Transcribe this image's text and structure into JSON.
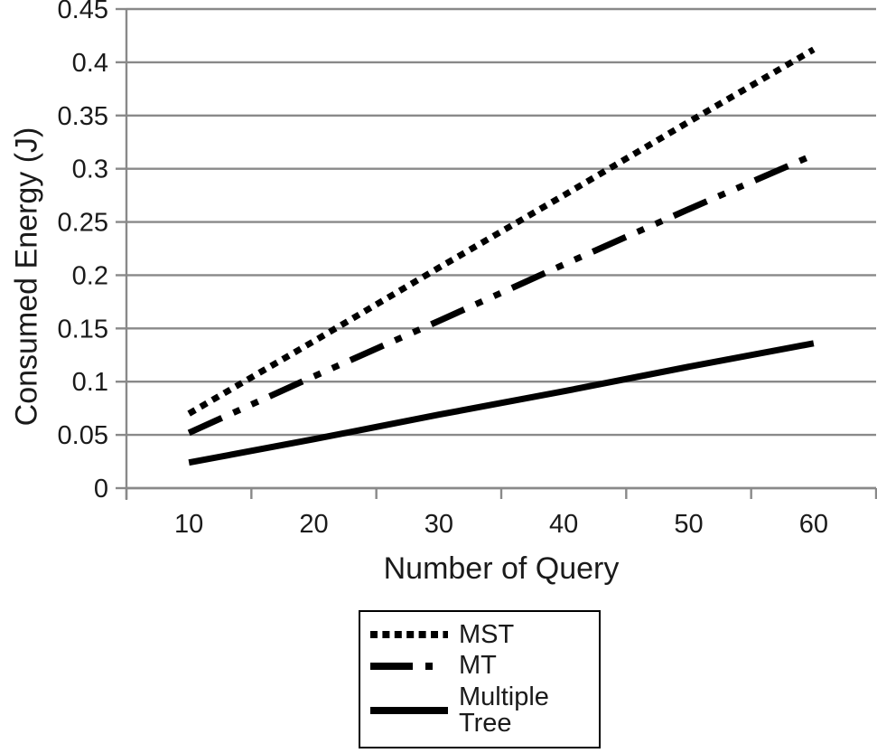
{
  "chart_data": {
    "type": "line",
    "x": [
      10,
      20,
      30,
      40,
      50,
      60
    ],
    "xtick_labels": [
      "10",
      "20",
      "30",
      "40",
      "50",
      "60"
    ],
    "yticks": [
      0,
      0.05,
      0.1,
      0.15,
      0.2,
      0.25,
      0.3,
      0.35,
      0.4,
      0.45
    ],
    "ytick_labels": [
      "0",
      "0.05",
      "0.1",
      "0.15",
      "0.2",
      "0.25",
      "0.3",
      "0.35",
      "0.4",
      "0.45"
    ],
    "ylim": [
      0,
      0.45
    ],
    "xlabel": "Number of Query",
    "ylabel": "Consumed Energy (J)",
    "grid": true,
    "legend_position": "bottom-center",
    "series": [
      {
        "name": "MST",
        "style": "dotted",
        "values": [
          0.07,
          0.138,
          0.207,
          0.275,
          0.344,
          0.412
        ]
      },
      {
        "name": "MT",
        "style": "long-dash-dot-dot",
        "values": [
          0.052,
          0.105,
          0.157,
          0.21,
          0.262,
          0.313
        ]
      },
      {
        "name": "Multiple Tree",
        "style": "solid",
        "values": [
          0.024,
          0.046,
          0.069,
          0.091,
          0.114,
          0.136
        ]
      }
    ],
    "colors": {
      "line": "#000000",
      "grid": "#898989",
      "axis": "#898989",
      "text": "#1a1a1a",
      "legend_border": "#000000",
      "background": "#ffffff"
    }
  }
}
